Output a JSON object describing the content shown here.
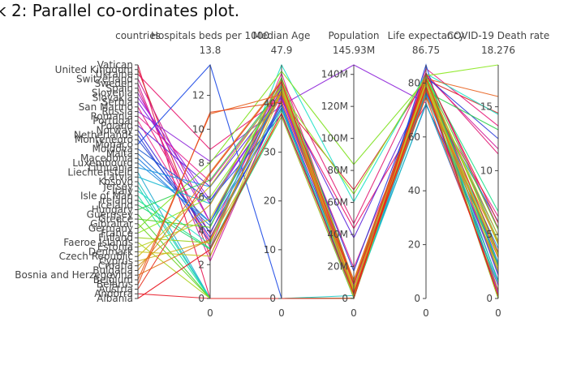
{
  "chart_data": {
    "type": "parallel-coordinates",
    "title": "k 2: Parallel co-ordinates plot.",
    "axes": [
      {
        "key": "countries",
        "label": "countries",
        "kind": "categorical",
        "tick_labels": [
          "Vatican",
          "United Kingdom",
          "Ukraine",
          "Switzerland",
          "Sweden",
          "Spain",
          "Slovenia",
          "Slovakia",
          "Serbia",
          "San Marino",
          "Russia",
          "Romania",
          "Portugal",
          "Poland",
          "Norway",
          "Netherlands",
          "Montenegro",
          "Monaco",
          "Moldova",
          "Malta",
          "Macedonia",
          "Luxembourg",
          "Lithuania",
          "Liechtenstein",
          "Latvia",
          "Kosovo",
          "Jersey",
          "Italy",
          "Isle of Man",
          "Ireland",
          "Iceland",
          "Hungary",
          "Guernsey",
          "Greece",
          "Gibraltar",
          "Germany",
          "France",
          "Finland",
          "Faeroe Islands",
          "Estonia",
          "Denmark",
          "Czech Republic",
          "Cyprus",
          "Croatia",
          "Bulgaria",
          "Bosnia and Herzegovina",
          "Belgium",
          "Belarus",
          "Austria",
          "Andorra",
          "Albania"
        ]
      },
      {
        "key": "beds",
        "label": "Hospitals beds per 1000",
        "kind": "numeric",
        "range": [
          0,
          13.8
        ],
        "top_label": "13.8",
        "bottom_label": "0",
        "ticks": [
          0,
          2,
          4,
          6,
          8,
          10,
          12
        ]
      },
      {
        "key": "age",
        "label": "Median Age",
        "kind": "numeric",
        "range": [
          0,
          47.9
        ],
        "top_label": "47.9",
        "bottom_label": "0",
        "ticks": [
          0,
          10,
          20,
          30,
          40
        ],
        "tick_labels": [
          "0",
          "10",
          "20",
          "30",
          "40"
        ]
      },
      {
        "key": "pop",
        "label": "Population",
        "kind": "numeric",
        "range": [
          0,
          145.93
        ],
        "top_label": "145.93M",
        "bottom_label": "0",
        "ticks": [
          0,
          20,
          40,
          60,
          80,
          100,
          120,
          140
        ],
        "tick_labels": [
          "0",
          "20M",
          "40M",
          "60M",
          "80M",
          "100M",
          "120M",
          "140M"
        ]
      },
      {
        "key": "life",
        "label": "Life expectancy",
        "kind": "numeric",
        "range": [
          0,
          86.75
        ],
        "top_label": "86.75",
        "bottom_label": "0",
        "ticks": [
          0,
          20,
          40,
          60,
          80
        ],
        "tick_labels": [
          "0",
          "20",
          "40",
          "60",
          "80"
        ]
      },
      {
        "key": "death",
        "label": "COVID-19 Death rate",
        "kind": "numeric",
        "range": [
          0,
          18.276
        ],
        "top_label": "18.276",
        "bottom_label": "0",
        "ticks": [
          0,
          5,
          10,
          15
        ],
        "tick_labels": [
          "0",
          "5",
          "10",
          "15"
        ]
      }
    ],
    "series": [
      {
        "country": "Vatican",
        "beds": 0,
        "age": 0,
        "pop": 0.0008,
        "life": 80,
        "death": 0,
        "color": "#e8114f"
      },
      {
        "country": "United Kingdom",
        "beds": 2.5,
        "age": 40.5,
        "pop": 67.9,
        "life": 81.3,
        "death": 14.5,
        "color": "#d62728"
      },
      {
        "country": "Ukraine",
        "beds": 8.8,
        "age": 41.2,
        "pop": 43.7,
        "life": 72.1,
        "death": 2.6,
        "color": "#e8116a"
      },
      {
        "country": "Switzerland",
        "beds": 4.5,
        "age": 43.1,
        "pop": 8.65,
        "life": 83.8,
        "death": 5.5,
        "color": "#cc1188"
      },
      {
        "country": "Sweden",
        "beds": 2.2,
        "age": 41,
        "pop": 10.1,
        "life": 82.8,
        "death": 11.7,
        "color": "#d11d9b"
      },
      {
        "country": "Spain",
        "beds": 3,
        "age": 44.9,
        "pop": 46.75,
        "life": 83.6,
        "death": 11.3,
        "color": "#e11d74"
      },
      {
        "country": "Slovenia",
        "beds": 4.5,
        "age": 44.5,
        "pop": 2.08,
        "life": 81.3,
        "death": 1.8,
        "color": "#b11dd1"
      },
      {
        "country": "Slovakia",
        "beds": 5.8,
        "age": 41.2,
        "pop": 5.46,
        "life": 77.5,
        "death": 0.4,
        "color": "#9d1de1"
      },
      {
        "country": "Serbia",
        "beds": 5.6,
        "age": 41.6,
        "pop": 8.74,
        "life": 76,
        "death": 2.1,
        "color": "#7a1de8"
      },
      {
        "country": "San Marino",
        "beds": 3.8,
        "age": 44,
        "pop": 0.034,
        "life": 85.4,
        "death": 13.5,
        "color": "#e6197a"
      },
      {
        "country": "Russia",
        "beds": 8.1,
        "age": 39.6,
        "pop": 145.93,
        "life": 72.6,
        "death": 1,
        "color": "#8e24d9"
      },
      {
        "country": "Romania",
        "beds": 6.9,
        "age": 43,
        "pop": 19.24,
        "life": 76.1,
        "death": 6.4,
        "color": "#e62390"
      },
      {
        "country": "Portugal",
        "beds": 3.4,
        "age": 46.2,
        "pop": 10.2,
        "life": 82,
        "death": 4.3,
        "color": "#f02a8c"
      },
      {
        "country": "Poland",
        "beds": 6.6,
        "age": 41.8,
        "pop": 37.85,
        "life": 78.7,
        "death": 4.9,
        "color": "#5b24d9"
      },
      {
        "country": "Norway",
        "beds": 3.6,
        "age": 39.8,
        "pop": 5.42,
        "life": 82.4,
        "death": 2.8,
        "color": "#3b2dd9"
      },
      {
        "country": "Netherlands",
        "beds": 3.3,
        "age": 43.3,
        "pop": 17.13,
        "life": 82.3,
        "death": 12.5,
        "color": "#2a3cd9"
      },
      {
        "country": "Montenegro",
        "beds": 3.9,
        "age": 39.1,
        "pop": 0.628,
        "life": 76.9,
        "death": 1.4,
        "color": "#1d3fd1"
      },
      {
        "country": "Monaco",
        "beds": 13.8,
        "age": 0,
        "pop": 0.039,
        "life": 86.75,
        "death": 0,
        "color": "#1a47e6"
      },
      {
        "country": "Moldova",
        "beds": 5.8,
        "age": 37.7,
        "pop": 4.03,
        "life": 71.9,
        "death": 3.5,
        "color": "#1d5ad1"
      },
      {
        "country": "Malta",
        "beds": 4.5,
        "age": 42.4,
        "pop": 0.44,
        "life": 82.5,
        "death": 1.9,
        "color": "#1d6ad1"
      },
      {
        "country": "Macedonia",
        "beds": 4.3,
        "age": 39.1,
        "pop": 2.08,
        "life": 75.8,
        "death": 6,
        "color": "#1d7ae1"
      },
      {
        "country": "Luxembourg",
        "beds": 4.5,
        "age": 39.7,
        "pop": 0.63,
        "life": 82.3,
        "death": 2.7,
        "color": "#1d8ae1"
      },
      {
        "country": "Lithuania",
        "beds": 6.6,
        "age": 43.5,
        "pop": 2.72,
        "life": 75.9,
        "death": 3.9,
        "color": "#1d9ae1"
      },
      {
        "country": "Liechtenstein",
        "beds": 0,
        "age": 0,
        "pop": 0.038,
        "life": 82.5,
        "death": 0,
        "color": "#1daad1"
      },
      {
        "country": "Latvia",
        "beds": 5.6,
        "age": 43.9,
        "pop": 1.89,
        "life": 75.3,
        "death": 2.8,
        "color": "#1dbad1"
      },
      {
        "country": "Kosovo",
        "beds": 0,
        "age": 0,
        "pop": 1.8,
        "life": 72.5,
        "death": 1.2,
        "color": "#1dc6c1"
      },
      {
        "country": "Jersey",
        "beds": 0,
        "age": 0,
        "pop": 0.1,
        "life": 81,
        "death": 1.3,
        "color": "#1dd1b1"
      },
      {
        "country": "Italy",
        "beds": 3.2,
        "age": 47.9,
        "pop": 60.46,
        "life": 83.5,
        "death": 14.4,
        "color": "#1de1c6"
      },
      {
        "country": "Isle of Man",
        "beds": 0,
        "age": 0,
        "pop": 0.085,
        "life": 81.4,
        "death": 3.5,
        "color": "#1de1a1"
      },
      {
        "country": "Ireland",
        "beds": 2.96,
        "age": 38.7,
        "pop": 4.94,
        "life": 82.3,
        "death": 6.8,
        "color": "#1de18a"
      },
      {
        "country": "Iceland",
        "beds": 2.91,
        "age": 37.3,
        "pop": 0.34,
        "life": 82.99,
        "death": 0.6,
        "color": "#1ed66e"
      },
      {
        "country": "Hungary",
        "beds": 7,
        "age": 43.4,
        "pop": 9.66,
        "life": 76.9,
        "death": 13.2,
        "color": "#2bd14e"
      },
      {
        "country": "Guernsey",
        "beds": 0,
        "age": 0,
        "pop": 0.067,
        "life": 82,
        "death": 2.5,
        "color": "#3ed12b"
      },
      {
        "country": "Greece",
        "beds": 4.2,
        "age": 45.3,
        "pop": 10.42,
        "life": 82.2,
        "death": 5.4,
        "color": "#54d11d"
      },
      {
        "country": "Gibraltar",
        "beds": 0,
        "age": 0,
        "pop": 0.034,
        "life": 79.9,
        "death": 0,
        "color": "#6cd11d"
      },
      {
        "country": "Germany",
        "beds": 8,
        "age": 46.6,
        "pop": 83.78,
        "life": 81.3,
        "death": 4.5,
        "color": "#7ee11d"
      },
      {
        "country": "France",
        "beds": 5.98,
        "age": 42,
        "pop": 65.27,
        "life": 82.7,
        "death": 18.276,
        "color": "#8ae81d"
      },
      {
        "country": "Finland",
        "beds": 3.28,
        "age": 42.8,
        "pop": 5.54,
        "life": 81.9,
        "death": 4.2,
        "color": "#9ad11d"
      },
      {
        "country": "Faeroe Islands",
        "beds": 0,
        "age": 0,
        "pop": 0.049,
        "life": 82.6,
        "death": 0,
        "color": "#aad11d"
      },
      {
        "country": "Estonia",
        "beds": 4.69,
        "age": 42.7,
        "pop": 1.33,
        "life": 78.7,
        "death": 3.4,
        "color": "#bad11d"
      },
      {
        "country": "Denmark",
        "beds": 2.5,
        "age": 42.3,
        "pop": 5.79,
        "life": 80.9,
        "death": 4.9,
        "color": "#c6c81d"
      },
      {
        "country": "Czech Republic",
        "beds": 6.63,
        "age": 43.3,
        "pop": 10.71,
        "life": 79.4,
        "death": 3.2,
        "color": "#d1c11d"
      },
      {
        "country": "Cyprus",
        "beds": 3.4,
        "age": 37.3,
        "pop": 0.875,
        "life": 80.98,
        "death": 2.1,
        "color": "#d1b11d"
      },
      {
        "country": "Croatia",
        "beds": 5.54,
        "age": 44,
        "pop": 4.1,
        "life": 78.5,
        "death": 2.3,
        "color": "#d19d1d"
      },
      {
        "country": "Bulgaria",
        "beds": 7.45,
        "age": 44.7,
        "pop": 6.95,
        "life": 75.05,
        "death": 4.4,
        "color": "#e1891d"
      },
      {
        "country": "Bosnia and Herzegovina",
        "beds": 3.5,
        "age": 42.5,
        "pop": 3.28,
        "life": 77.4,
        "death": 3.2,
        "color": "#e1741d"
      },
      {
        "country": "Belgium",
        "beds": 10.9,
        "age": 41.8,
        "pop": 11.59,
        "life": 81.6,
        "death": 15.8,
        "color": "#e8601d"
      },
      {
        "country": "Belarus",
        "beds": 11,
        "age": 40.3,
        "pop": 9.45,
        "life": 74.8,
        "death": 0.6,
        "color": "#e8481d"
      },
      {
        "country": "Austria",
        "beds": 7.37,
        "age": 44.4,
        "pop": 9.01,
        "life": 81.5,
        "death": 3.6,
        "color": "#e8311d"
      },
      {
        "country": "Andorra",
        "beds": 0,
        "age": 0,
        "pop": 0.077,
        "life": 83.7,
        "death": 5.9,
        "color": "#e81d2a"
      },
      {
        "country": "Albania",
        "beds": 2.89,
        "age": 38,
        "pop": 2.88,
        "life": 78.57,
        "death": 0.2,
        "color": "#e8141d"
      }
    ]
  }
}
